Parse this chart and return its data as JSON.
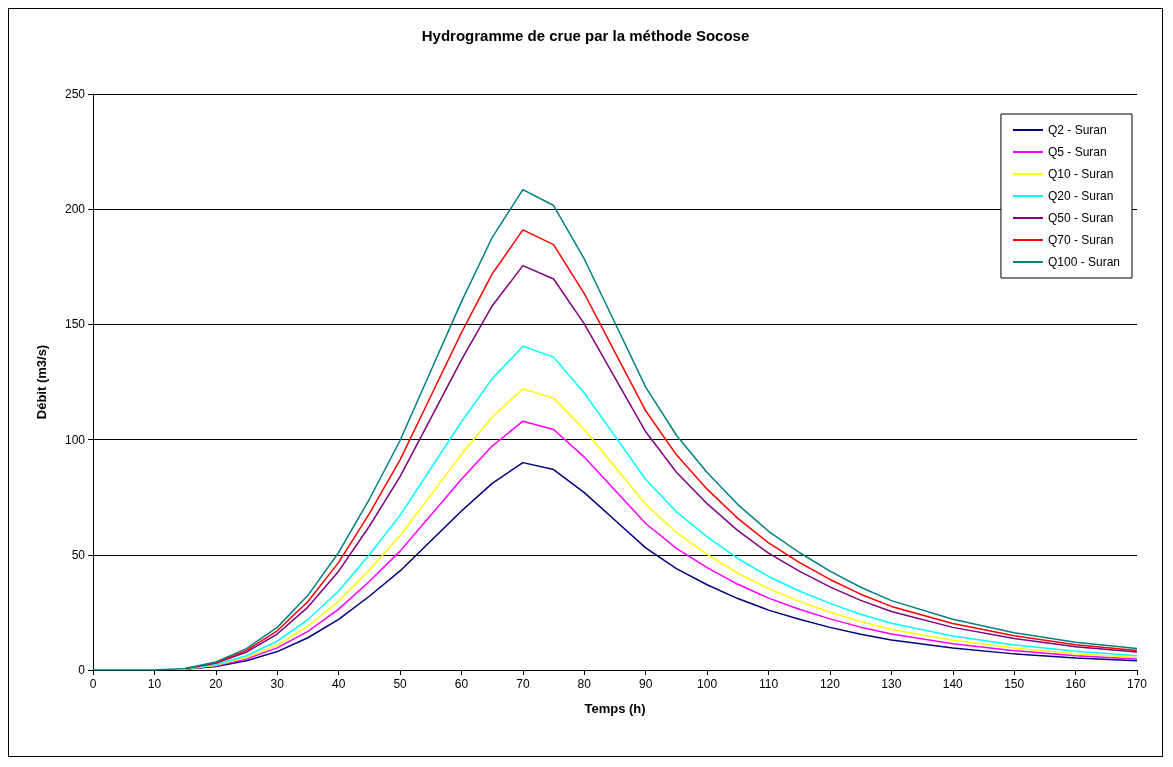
{
  "chart_data": {
    "type": "line",
    "title": "Hydrogramme de crue par la méthode Socose",
    "xlabel": "Temps (h)",
    "ylabel": "Débit (m3/s)",
    "x": [
      0,
      10,
      15,
      20,
      25,
      30,
      35,
      40,
      45,
      50,
      55,
      60,
      65,
      70,
      75,
      80,
      85,
      90,
      95,
      100,
      105,
      110,
      115,
      120,
      125,
      130,
      140,
      150,
      160,
      170
    ],
    "series": [
      {
        "name": "Q2 - Suran",
        "color": "#000080",
        "values": [
          null,
          null,
          0.3,
          1.5,
          4,
          8,
          14,
          22,
          32,
          43,
          56,
          69,
          81,
          90,
          87,
          77,
          65,
          53,
          44,
          37,
          31,
          26,
          22,
          18.5,
          15.5,
          13,
          9.5,
          7,
          5.2,
          4
        ]
      },
      {
        "name": "Q5 - Suran",
        "color": "#ff00ff",
        "values": [
          null,
          null,
          null,
          1.8,
          4.8,
          9.6,
          16.8,
          26.4,
          38.4,
          51.6,
          67.2,
          82.8,
          97.2,
          108,
          104.4,
          92.4,
          78,
          63.6,
          52.8,
          44.4,
          37.2,
          31.2,
          26.4,
          22.2,
          18.6,
          15.6,
          11.4,
          8.4,
          6.2,
          4.8
        ]
      },
      {
        "name": "Q10 - Suran",
        "color": "#ffff00",
        "values": [
          null,
          null,
          0.4,
          2,
          5.4,
          10.8,
          19,
          29.8,
          43.4,
          58.3,
          75.9,
          93.6,
          109.8,
          122,
          118,
          104.4,
          88.1,
          71.9,
          59.7,
          50.2,
          42,
          35.3,
          29.8,
          25.1,
          21,
          17.6,
          12.9,
          9.5,
          7.1,
          5.4
        ]
      },
      {
        "name": "Q20 - Suran",
        "color": "#00ffff",
        "values": [
          null,
          null,
          0.5,
          2.3,
          6.2,
          12.5,
          21.9,
          34.3,
          50,
          67.1,
          87.4,
          107.7,
          126.4,
          140.5,
          135.8,
          120.2,
          101.5,
          82.7,
          68.7,
          57.8,
          48.4,
          40.6,
          34.3,
          28.9,
          24.2,
          20.3,
          14.8,
          10.9,
          8.1,
          6.2
        ]
      },
      {
        "name": "Q50 - Suran",
        "color": "#800080",
        "values": [
          null,
          null,
          0.6,
          2.9,
          7.8,
          15.6,
          27.3,
          42.9,
          62.4,
          83.9,
          109.2,
          134.6,
          158,
          175.5,
          169.7,
          150.2,
          126.8,
          103.4,
          85.8,
          72.2,
          60.5,
          50.7,
          42.9,
          36.1,
          30.2,
          25.4,
          18.5,
          13.7,
          10.1,
          7.8
        ]
      },
      {
        "name": "Q70 - Suran",
        "color": "#ff0000",
        "values": [
          null,
          null,
          0.6,
          3.2,
          8.5,
          17,
          29.7,
          46.7,
          67.9,
          91.2,
          118.8,
          146.4,
          171.9,
          191,
          184.6,
          163.4,
          137.9,
          112.5,
          93.4,
          78.5,
          65.8,
          55.2,
          46.7,
          39.3,
          32.9,
          27.6,
          20.2,
          14.9,
          11,
          8.5
        ]
      },
      {
        "name": "Q100 - Suran",
        "color": "#008080",
        "values": [
          0,
          0,
          0.7,
          3.5,
          9.3,
          18.5,
          32.4,
          51,
          74.1,
          99.6,
          129.8,
          159.9,
          187.7,
          208.5,
          201.6,
          178.4,
          150.6,
          122.8,
          101.9,
          85.7,
          71.8,
          60.2,
          51,
          42.9,
          35.9,
          30.1,
          22,
          16.2,
          12,
          9.3
        ]
      }
    ],
    "xlim": [
      0,
      170
    ],
    "xticks": [
      0,
      10,
      20,
      30,
      40,
      50,
      60,
      70,
      80,
      90,
      100,
      110,
      120,
      130,
      140,
      150,
      160,
      170
    ],
    "ylim": [
      0,
      250
    ],
    "yticks": [
      0,
      50,
      100,
      150,
      200,
      250
    ],
    "grid": "y",
    "legend": "top right",
    "marker": "none",
    "line_style": "solid"
  }
}
